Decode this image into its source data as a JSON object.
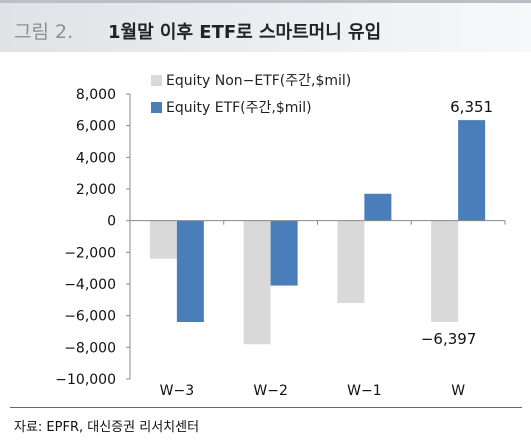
{
  "figure": {
    "label": "그림 2.",
    "title": "1월말 이후 ETF로 스마트머니 유입"
  },
  "source": "자료: EPFR, 대신증권 리서치센터",
  "colors": {
    "non_etf": "#d9d9d9",
    "etf": "#4a7ebb"
  },
  "chart_data": {
    "type": "bar",
    "title": "",
    "xlabel": "",
    "ylabel": "",
    "categories": [
      "W−3",
      "W−2",
      "W−1",
      "W"
    ],
    "series": [
      {
        "name": "Equity Non−ETF(주간,$mil)",
        "values": [
          -2400,
          -7800,
          -5200,
          -6397
        ]
      },
      {
        "name": "Equity ETF(주간,$mil)",
        "values": [
          -6400,
          -4100,
          1700,
          6351
        ]
      }
    ],
    "ylim": [
      -10000,
      8000
    ],
    "yticks": [
      8000,
      6000,
      4000,
      2000,
      0,
      -2000,
      -4000,
      -6000,
      -8000,
      -10000
    ],
    "ytick_labels": [
      "8,000",
      "6,000",
      "4,000",
      "2,000",
      "0",
      "−2,000",
      "−4,000",
      "−6,000",
      "−8,000",
      "−10,000"
    ],
    "data_labels": [
      {
        "series": 1,
        "index": 3,
        "text": "6,351"
      },
      {
        "series": 0,
        "index": 3,
        "text": "−6,397"
      }
    ],
    "grid": false,
    "legend_position": "top-left"
  }
}
